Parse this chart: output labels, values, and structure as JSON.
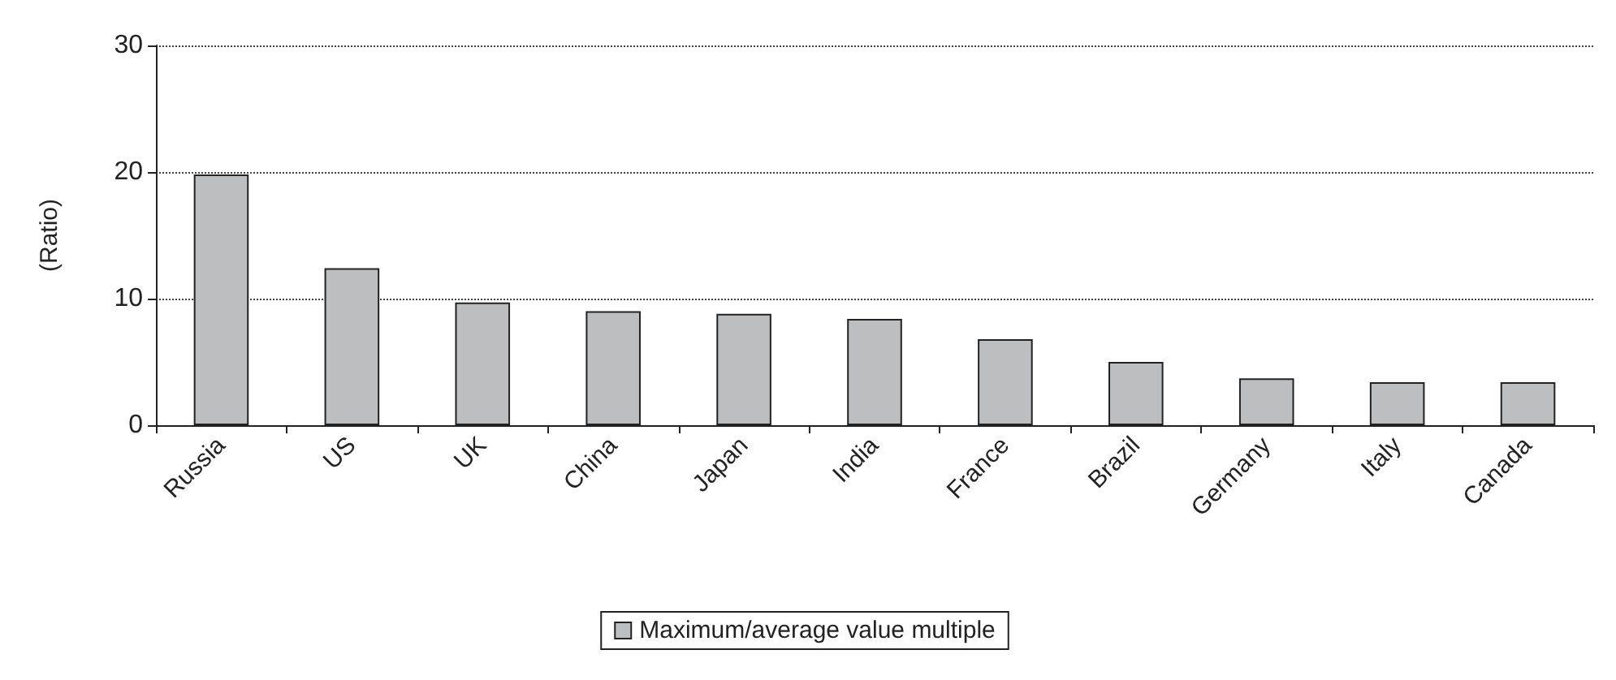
{
  "chart_data": {
    "type": "bar",
    "ylabel": "(Ratio)",
    "categories": [
      "Russia",
      "US",
      "UK",
      "China",
      "Japan",
      "India",
      "France",
      "Brazil",
      "Germany",
      "Italy",
      "Canada"
    ],
    "series": [
      {
        "name": "Maximum/average value multiple",
        "color": "#bdbec0",
        "values": [
          19.8,
          12.4,
          9.7,
          9.0,
          8.8,
          8.4,
          6.8,
          5.0,
          3.7,
          3.4,
          3.4
        ]
      }
    ],
    "ylim": [
      0,
      30
    ],
    "yticks": [
      0,
      10,
      20,
      30
    ],
    "grid": "y",
    "legend": "bottom"
  }
}
